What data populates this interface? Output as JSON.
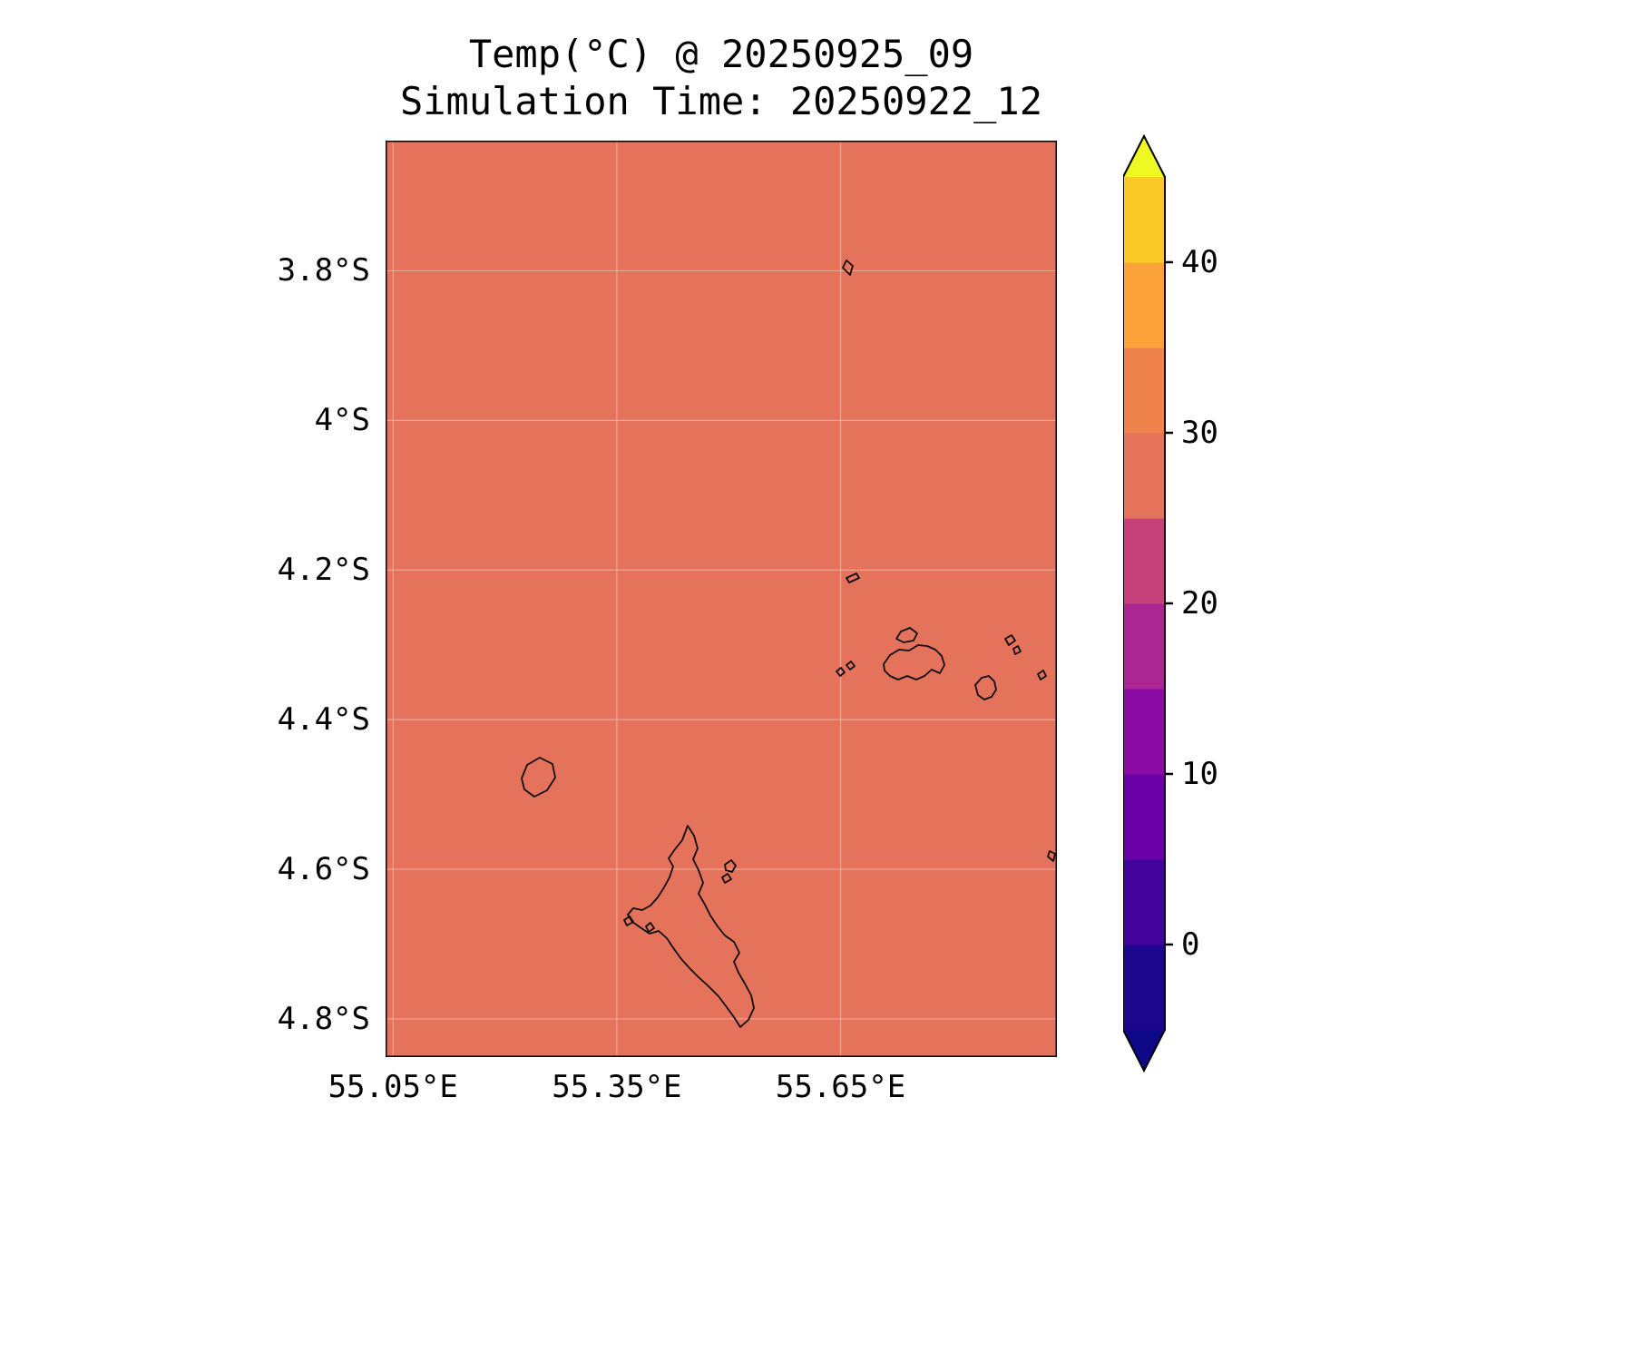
{
  "figure": {
    "title": "Temp(°C) @ 20250925_09",
    "subtitle": "Simulation Time: 20250922_12",
    "background_color": "#ffffff",
    "text_color": "#000000"
  },
  "axes": {
    "x_range": [
      55.04,
      55.94
    ],
    "y_range": [
      3.626,
      4.851
    ],
    "x_ticks": [
      {
        "value": 55.05,
        "label": "55.05°E"
      },
      {
        "value": 55.35,
        "label": "55.35°E"
      },
      {
        "value": 55.65,
        "label": "55.65°E"
      }
    ],
    "y_ticks": [
      {
        "value": 3.8,
        "label": "3.8°S"
      },
      {
        "value": 4.0,
        "label": "4°S"
      },
      {
        "value": 4.2,
        "label": "4.2°S"
      },
      {
        "value": 4.4,
        "label": "4.4°S"
      },
      {
        "value": 4.6,
        "label": "4.6°S"
      },
      {
        "value": 4.8,
        "label": "4.8°S"
      }
    ]
  },
  "map": {
    "fill_color": "#e5735c",
    "coastline_color": "#0d0d0d",
    "gridline_color": "rgba(255,255,255,0.35)",
    "coastline_paths": [
      "M508,132 L515,138 L512,148 L504,140 Z",
      "M508,482 L519,477 L522,482 L511,487 Z",
      "M563,549 L568,541 L578,537 L586,543 L582,551 L571,553 Z",
      "M549,577 L556,567 L566,561 L577,562 L587,556 L597,557 L606,561 L613,568 L616,578 L611,587 L602,583 L594,590 L585,594 L575,590 L565,594 L556,590 L550,584 Z",
      "M508,578 L513,574 L517,579 L512,583 Z",
      "M497,585 L502,581 L506,586 L501,590 Z",
      "M650,600 L657,592 L665,590 L671,596 L673,605 L668,613 L660,616 L653,611 Z",
      "M683,549 L690,545 L694,551 L687,556 Z",
      "M692,560 L697,557 L700,563 L694,566 Z",
      "M719,588 L725,584 L728,590 L722,594 Z",
      "M732,783 L738,786 L736,794 L730,789 Z",
      "M150,703 L156,688 L170,680 L184,687 L187,702 L178,716 L164,723 L153,715 Z",
      "M333,755 L340,766 L344,780 L339,792 L345,804 L350,818 L345,830 L352,842 L358,854 L366,866 L374,876 L384,883 L390,895 L384,905 L389,917 L396,929 L403,942 L406,956 L400,969 L391,977 L384,966 L376,955 L367,943 L356,932 L345,922 L335,912 L326,902 L318,891 L310,879 L301,871 L291,874 L282,868 L272,861 L267,853 L273,846 L283,848 L292,843 L300,834 L307,823 L313,812 L317,800 L312,791 L319,781 L327,771 Z",
      "M374,798 L381,793 L386,799 L382,806 L375,804 Z",
      "M371,812 L377,808 L381,814 L374,818 Z",
      "M263,859 L269,855 L273,861 L266,865 Z",
      "M287,866 L292,862 L296,868 L290,872 Z"
    ]
  },
  "colorbar": {
    "min": -5,
    "max": 45,
    "ticks": [
      {
        "value": 40,
        "label": "40"
      },
      {
        "value": 30,
        "label": "30"
      },
      {
        "value": 20,
        "label": "20"
      },
      {
        "value": 10,
        "label": "10"
      },
      {
        "value": 0,
        "label": "0"
      }
    ],
    "segment_colors_bottom_to_top": [
      "#1c068e",
      "#45039e",
      "#6a00a8",
      "#8d0ba5",
      "#ac2693",
      "#c7417b",
      "#e5735c",
      "#f0824c",
      "#fba238",
      "#fcca26"
    ],
    "under_color": "#0d0887",
    "over_color": "#f0f921",
    "outline_color": "#000000"
  },
  "chart_data": {
    "type": "heatmap",
    "title": "Temp(°C) @ 20250925_09",
    "subtitle": "Simulation Time: 20250922_12",
    "variable": "Temp",
    "units": "°C",
    "x_tick_labels": [
      "55.05°E",
      "55.35°E",
      "55.65°E"
    ],
    "y_tick_labels": [
      "3.8°S",
      "4°S",
      "4.2°S",
      "4.4°S",
      "4.6°S",
      "4.8°S"
    ],
    "xlim_deg_east": [
      55.04,
      55.94
    ],
    "ylim_deg_south": [
      3.63,
      4.85
    ],
    "field_description": "Spatially uniform temperature field across the whole map; every cell falls in the 25–30 °C color band (salmon), with island coastlines overlaid and no visible temperature variation",
    "uniform_value_estimate_c": 27,
    "colorbar": {
      "orientation": "vertical",
      "position": "right",
      "tick_values": [
        0,
        10,
        20,
        30,
        40
      ],
      "level_bounds": [
        -5,
        0,
        5,
        10,
        15,
        20,
        25,
        30,
        35,
        40,
        45
      ],
      "extend": "both"
    },
    "grid": true,
    "legend": false
  }
}
